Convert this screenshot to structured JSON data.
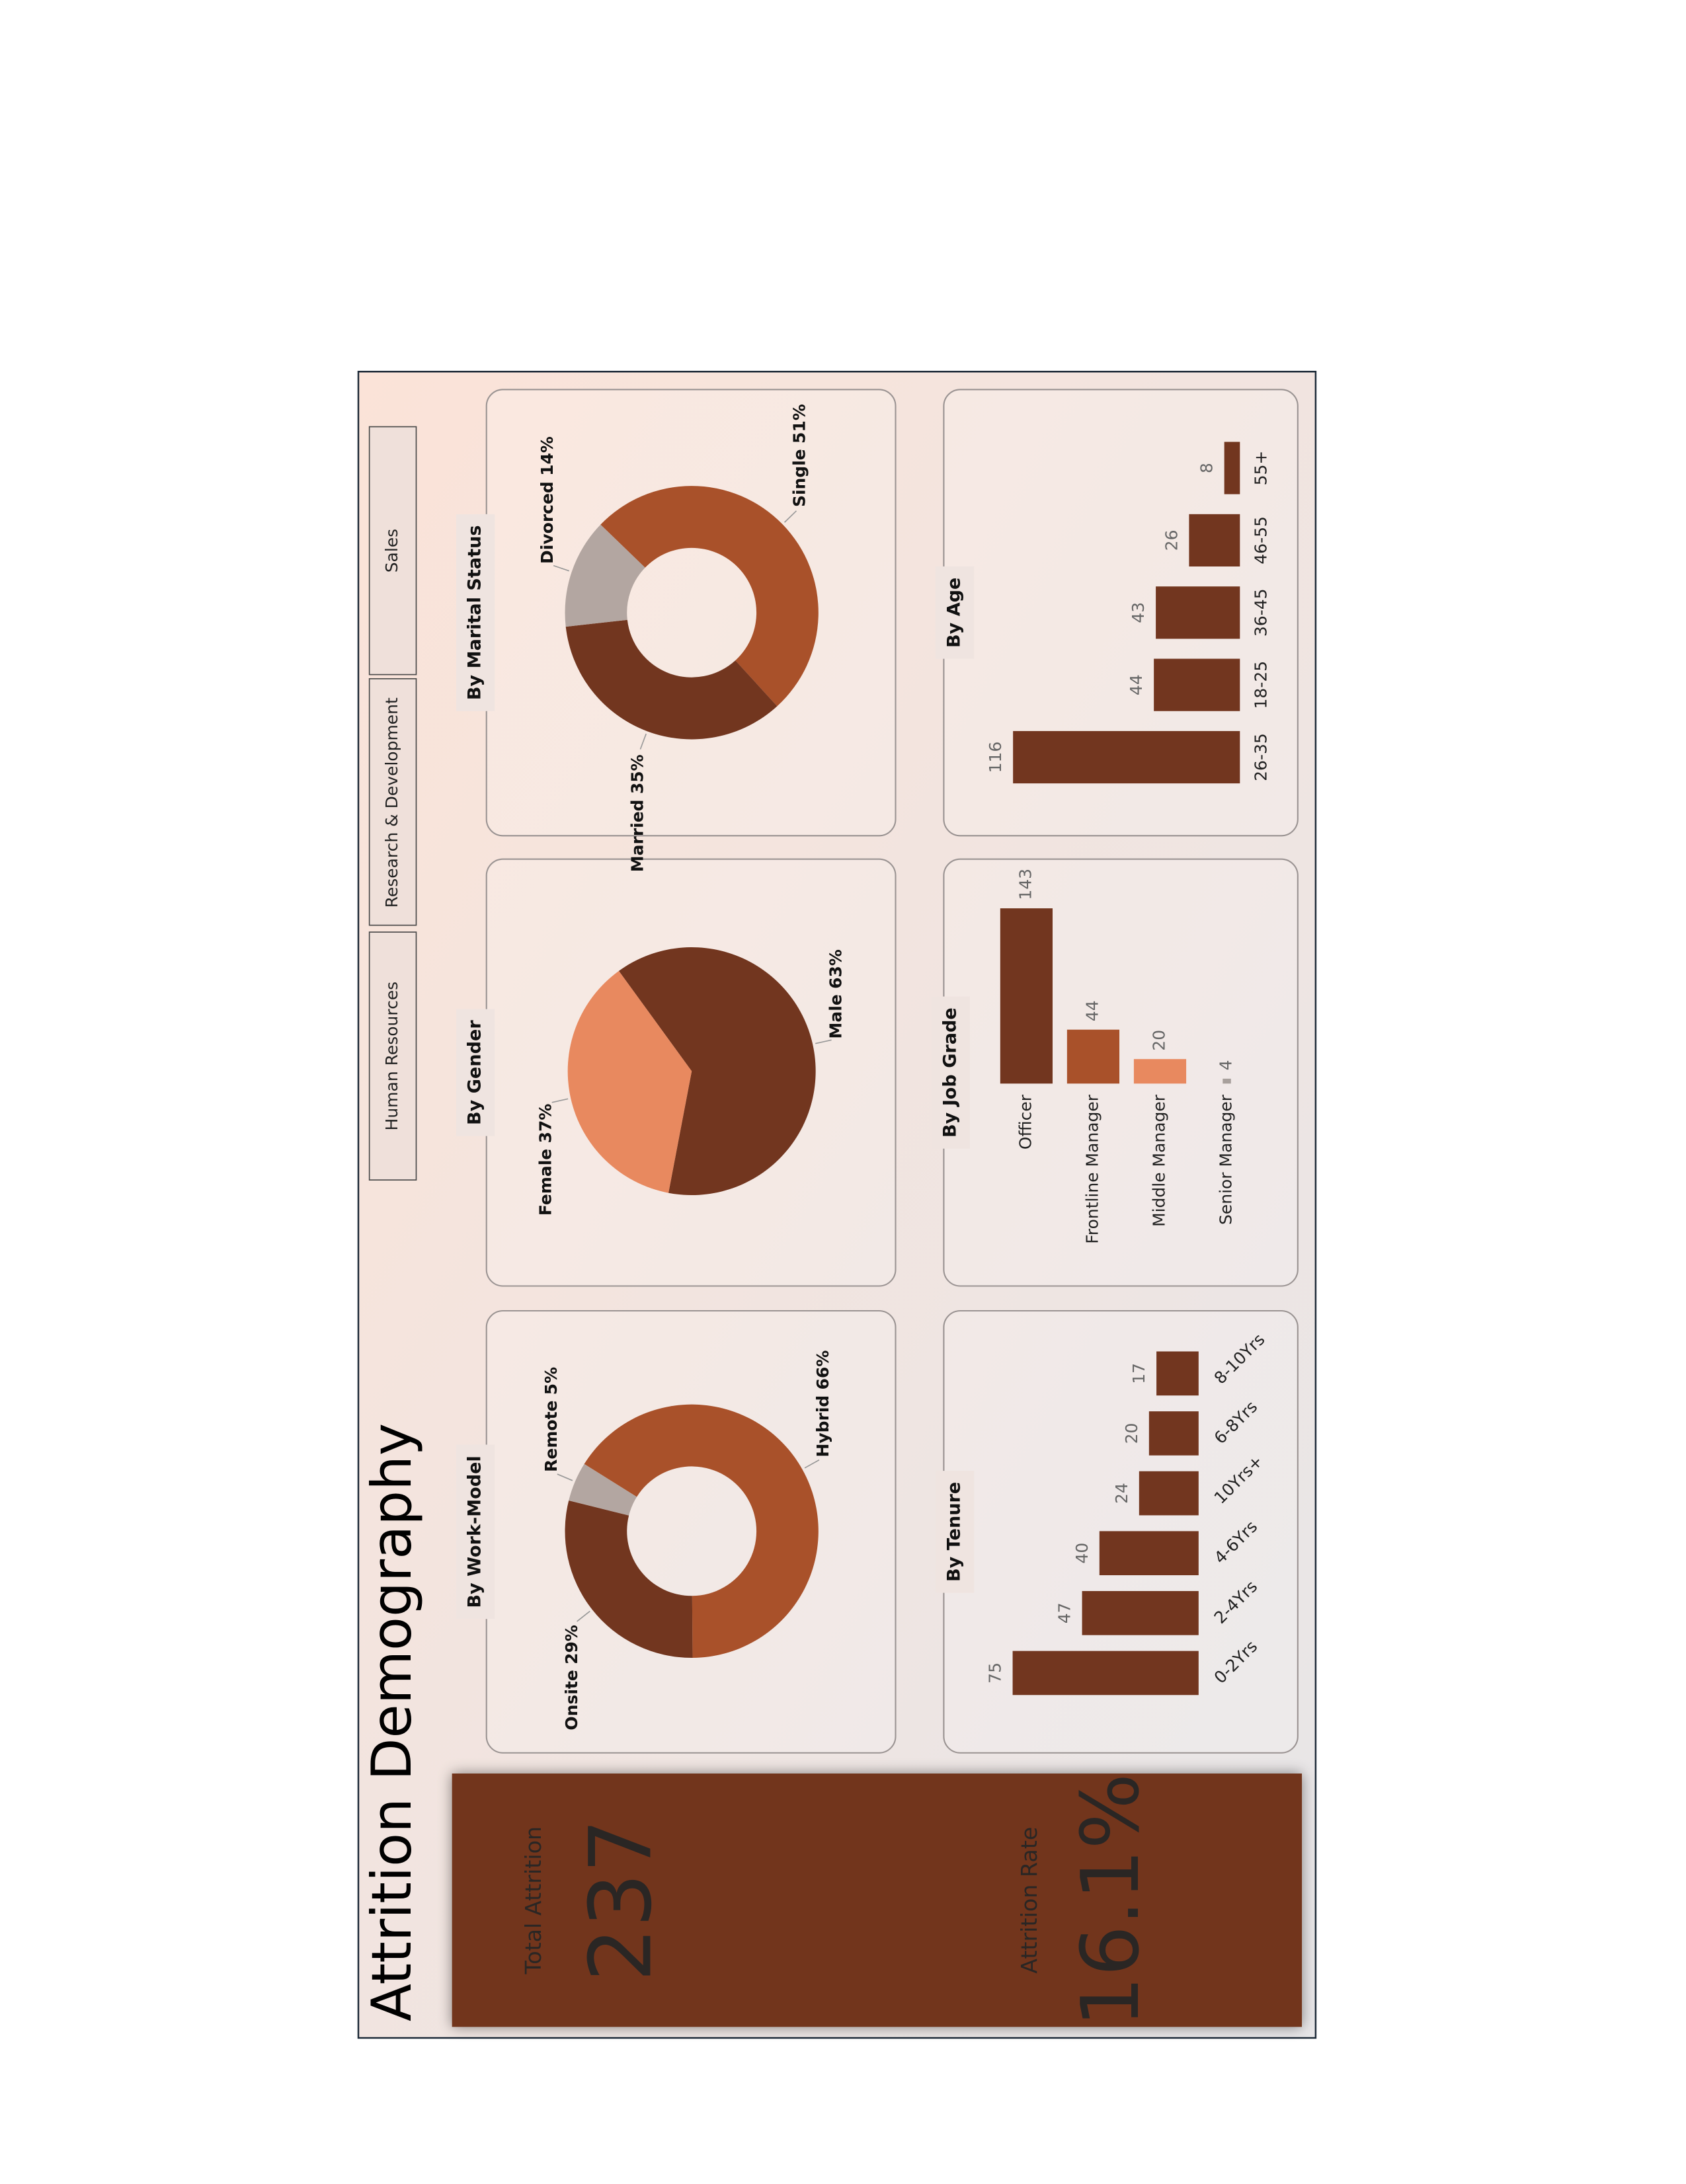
{
  "title": "Attrition Demography",
  "department_slicer": [
    "Human Resources",
    "Research & Development",
    "Sales"
  ],
  "kpis": [
    {
      "label": "Total Attrition",
      "value": 237
    },
    {
      "label": "Attrition Rate",
      "value": "16.1%"
    }
  ],
  "chart_data": [
    {
      "type": "donut",
      "title": "By Work-Model",
      "categories": [
        "Hybrid",
        "Onsite",
        "Remote"
      ],
      "values": [
        66,
        29,
        5
      ],
      "value_labels": [
        "66%",
        "29%",
        "5%"
      ],
      "colors": [
        "#a9512a",
        "#72361f",
        "#b3a6a1"
      ]
    },
    {
      "type": "pie",
      "title": "By Gender",
      "categories": [
        "Male",
        "Female"
      ],
      "values": [
        63,
        37
      ],
      "value_labels": [
        "63%",
        "37%"
      ],
      "colors": [
        "#72361f",
        "#e8895f"
      ]
    },
    {
      "type": "donut",
      "title": "By Marital Status",
      "categories": [
        "Single",
        "Married",
        "Divorced"
      ],
      "values": [
        51,
        35,
        14
      ],
      "value_labels": [
        "51%",
        "35%",
        "14%"
      ],
      "colors": [
        "#a9512a",
        "#72361f",
        "#b3a6a1"
      ]
    },
    {
      "type": "bar",
      "title": "By Tenure",
      "categories": [
        "0-2Yrs",
        "2-4Yrs",
        "4-6Yrs",
        "10Yrs+",
        "6-8Yrs",
        "8-10Yrs"
      ],
      "values": [
        75,
        47,
        40,
        24,
        20,
        17
      ],
      "colors": [
        "#72361f",
        "#72361f",
        "#72361f",
        "#72361f",
        "#72361f",
        "#72361f"
      ]
    },
    {
      "type": "hbar",
      "title": "By Job Grade",
      "categories": [
        "Officer",
        "Frontline Manager",
        "Middle Manager",
        "Senior Manager"
      ],
      "values": [
        143,
        44,
        20,
        4
      ],
      "colors": [
        "#72361f",
        "#a9512a",
        "#e8895f",
        "#a8a09c"
      ]
    },
    {
      "type": "bar",
      "title": "By Age",
      "categories": [
        "26-35",
        "18-25",
        "36-45",
        "46-55",
        "55+"
      ],
      "values": [
        116,
        44,
        43,
        26,
        8
      ],
      "colors": [
        "#72361f",
        "#72361f",
        "#72361f",
        "#72361f",
        "#72361f"
      ]
    }
  ]
}
